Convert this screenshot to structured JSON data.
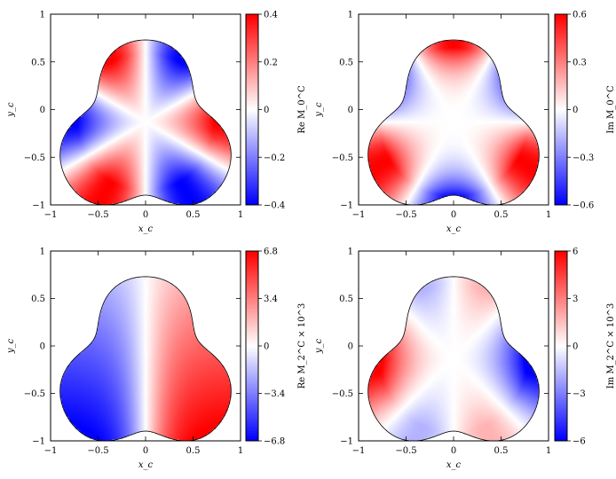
{
  "chart_data": [
    {
      "type": "heatmap",
      "xlabel": "x_c",
      "ylabel": "y_c",
      "colorbar_label": "Re M_0^C",
      "colorbar_ticks": [
        "0.4",
        "0.2",
        "0",
        "−0.2",
        "−0.4"
      ],
      "colorbar_range": [
        -0.4,
        0.4
      ],
      "xticks": [
        "−1",
        "−0.5",
        "0",
        "0.5",
        "1"
      ],
      "yticks": [
        "1",
        "0.5",
        "0",
        "−0.5",
        "−1"
      ],
      "xlim": [
        -1,
        1
      ],
      "ylim": [
        -1,
        1
      ],
      "pattern": "six-lobe alternating (re)"
    },
    {
      "type": "heatmap",
      "xlabel": "x_c",
      "ylabel": "y_c",
      "colorbar_label": "Im M_0^C",
      "colorbar_ticks": [
        "0.6",
        "0.3",
        "0",
        "−0.3",
        "−0.6"
      ],
      "colorbar_range": [
        -0.6,
        0.6
      ],
      "xticks": [
        "−1",
        "−0.5",
        "0",
        "0.5",
        "1"
      ],
      "yticks": [
        "1",
        "0.5",
        "0",
        "−0.5",
        "−1"
      ],
      "xlim": [
        -1,
        1
      ],
      "ylim": [
        -1,
        1
      ],
      "pattern": "six-lobe alternating near boundary (im)"
    },
    {
      "type": "heatmap",
      "xlabel": "x_c",
      "ylabel": "y_c",
      "colorbar_label": "Re M_2^C × 10^3",
      "colorbar_ticks": [
        "6.8",
        "3.4",
        "0",
        "−3.4",
        "−6.8"
      ],
      "colorbar_range": [
        -6.8,
        6.8
      ],
      "xticks": [
        "−1",
        "−0.5",
        "0",
        "0.5",
        "1"
      ],
      "yticks": [
        "1",
        "0.5",
        "0",
        "−0.5",
        "−1"
      ],
      "xlim": [
        -1,
        1
      ],
      "ylim": [
        -1,
        1
      ],
      "pattern": "left-right antisymmetric"
    },
    {
      "type": "heatmap",
      "xlabel": "x_c",
      "ylabel": "y_c",
      "colorbar_label": "Im M_2^C × 10^3",
      "colorbar_ticks": [
        "6",
        "3",
        "0",
        "−3",
        "−6"
      ],
      "colorbar_range": [
        -6,
        6
      ],
      "xticks": [
        "−1",
        "−0.5",
        "0",
        "0.5",
        "1"
      ],
      "yticks": [
        "1",
        "0.5",
        "0",
        "−0.5",
        "−1"
      ],
      "xlim": [
        -1,
        1
      ],
      "ylim": [
        -1,
        1
      ],
      "pattern": "edge-localized alternating (im, quadrupole)"
    }
  ],
  "colors": {
    "positive": "#ff0000",
    "zero": "#ffffff",
    "negative": "#0000ff",
    "axis": "#000000"
  }
}
